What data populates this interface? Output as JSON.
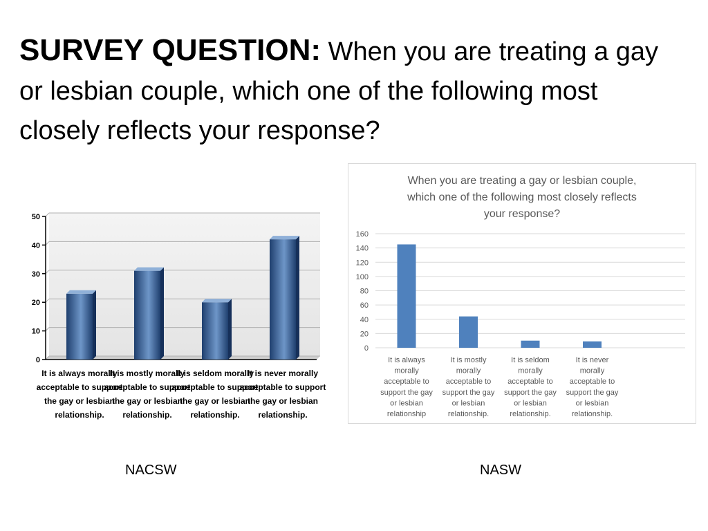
{
  "slide": {
    "title_lead": "SURVEY QUESTION:",
    "title_rest": " When you are treating a gay or lesbian couple, which one of the following most closely reflects your response?"
  },
  "captions": {
    "left": "NACSW",
    "right": "NASW"
  },
  "colors": {
    "left_bar_dark": "#1f3f6e",
    "left_bar_light": "#6e96c8",
    "right_bar": "#4f81bd",
    "gridline": "#d9d9d9",
    "axis_text": "#595959"
  },
  "chart_data": [
    {
      "type": "bar",
      "title": "",
      "xlabel": "",
      "ylabel": "",
      "ylim": [
        0,
        50
      ],
      "yticks": [
        0,
        10,
        20,
        30,
        40,
        50
      ],
      "grid": true,
      "legend": "none",
      "style": "3d",
      "categories": [
        [
          "It is always morally",
          "acceptable to support",
          "the gay or lesbian",
          "relationship."
        ],
        [
          "It is mostly morally",
          "acceptable to support",
          "the gay or lesbian",
          "relationship."
        ],
        [
          "It is seldom morally",
          "acceptable to support",
          "the gay or lesbian",
          "relationship."
        ],
        [
          "It is never morally",
          "acceptable to support",
          "the gay or lesbian",
          "relationship."
        ]
      ],
      "values": [
        23,
        31,
        20,
        42
      ]
    },
    {
      "type": "bar",
      "title": [
        "When you are treating a gay or lesbian couple,",
        "which one of the following most closely reflects",
        "your response?"
      ],
      "xlabel": "",
      "ylabel": "",
      "ylim": [
        0,
        160
      ],
      "yticks": [
        0,
        20,
        40,
        60,
        80,
        100,
        120,
        140,
        160
      ],
      "grid": true,
      "legend": "none",
      "categories": [
        [
          "It is always",
          "morally",
          "acceptable to",
          "support the gay",
          "or lesbian",
          "relationship"
        ],
        [
          "It is mostly",
          "morally",
          "acceptable to",
          "support the gay",
          "or lesbian",
          "relationship."
        ],
        [
          "It is seldom",
          "morally",
          "acceptable to",
          "support the gay",
          "or lesbian",
          "relationship."
        ],
        [
          "It is never",
          "morally",
          "acceptable to",
          "support the gay",
          "or lesbian",
          "relationship."
        ]
      ],
      "values": [
        145,
        44,
        10,
        9
      ]
    }
  ]
}
